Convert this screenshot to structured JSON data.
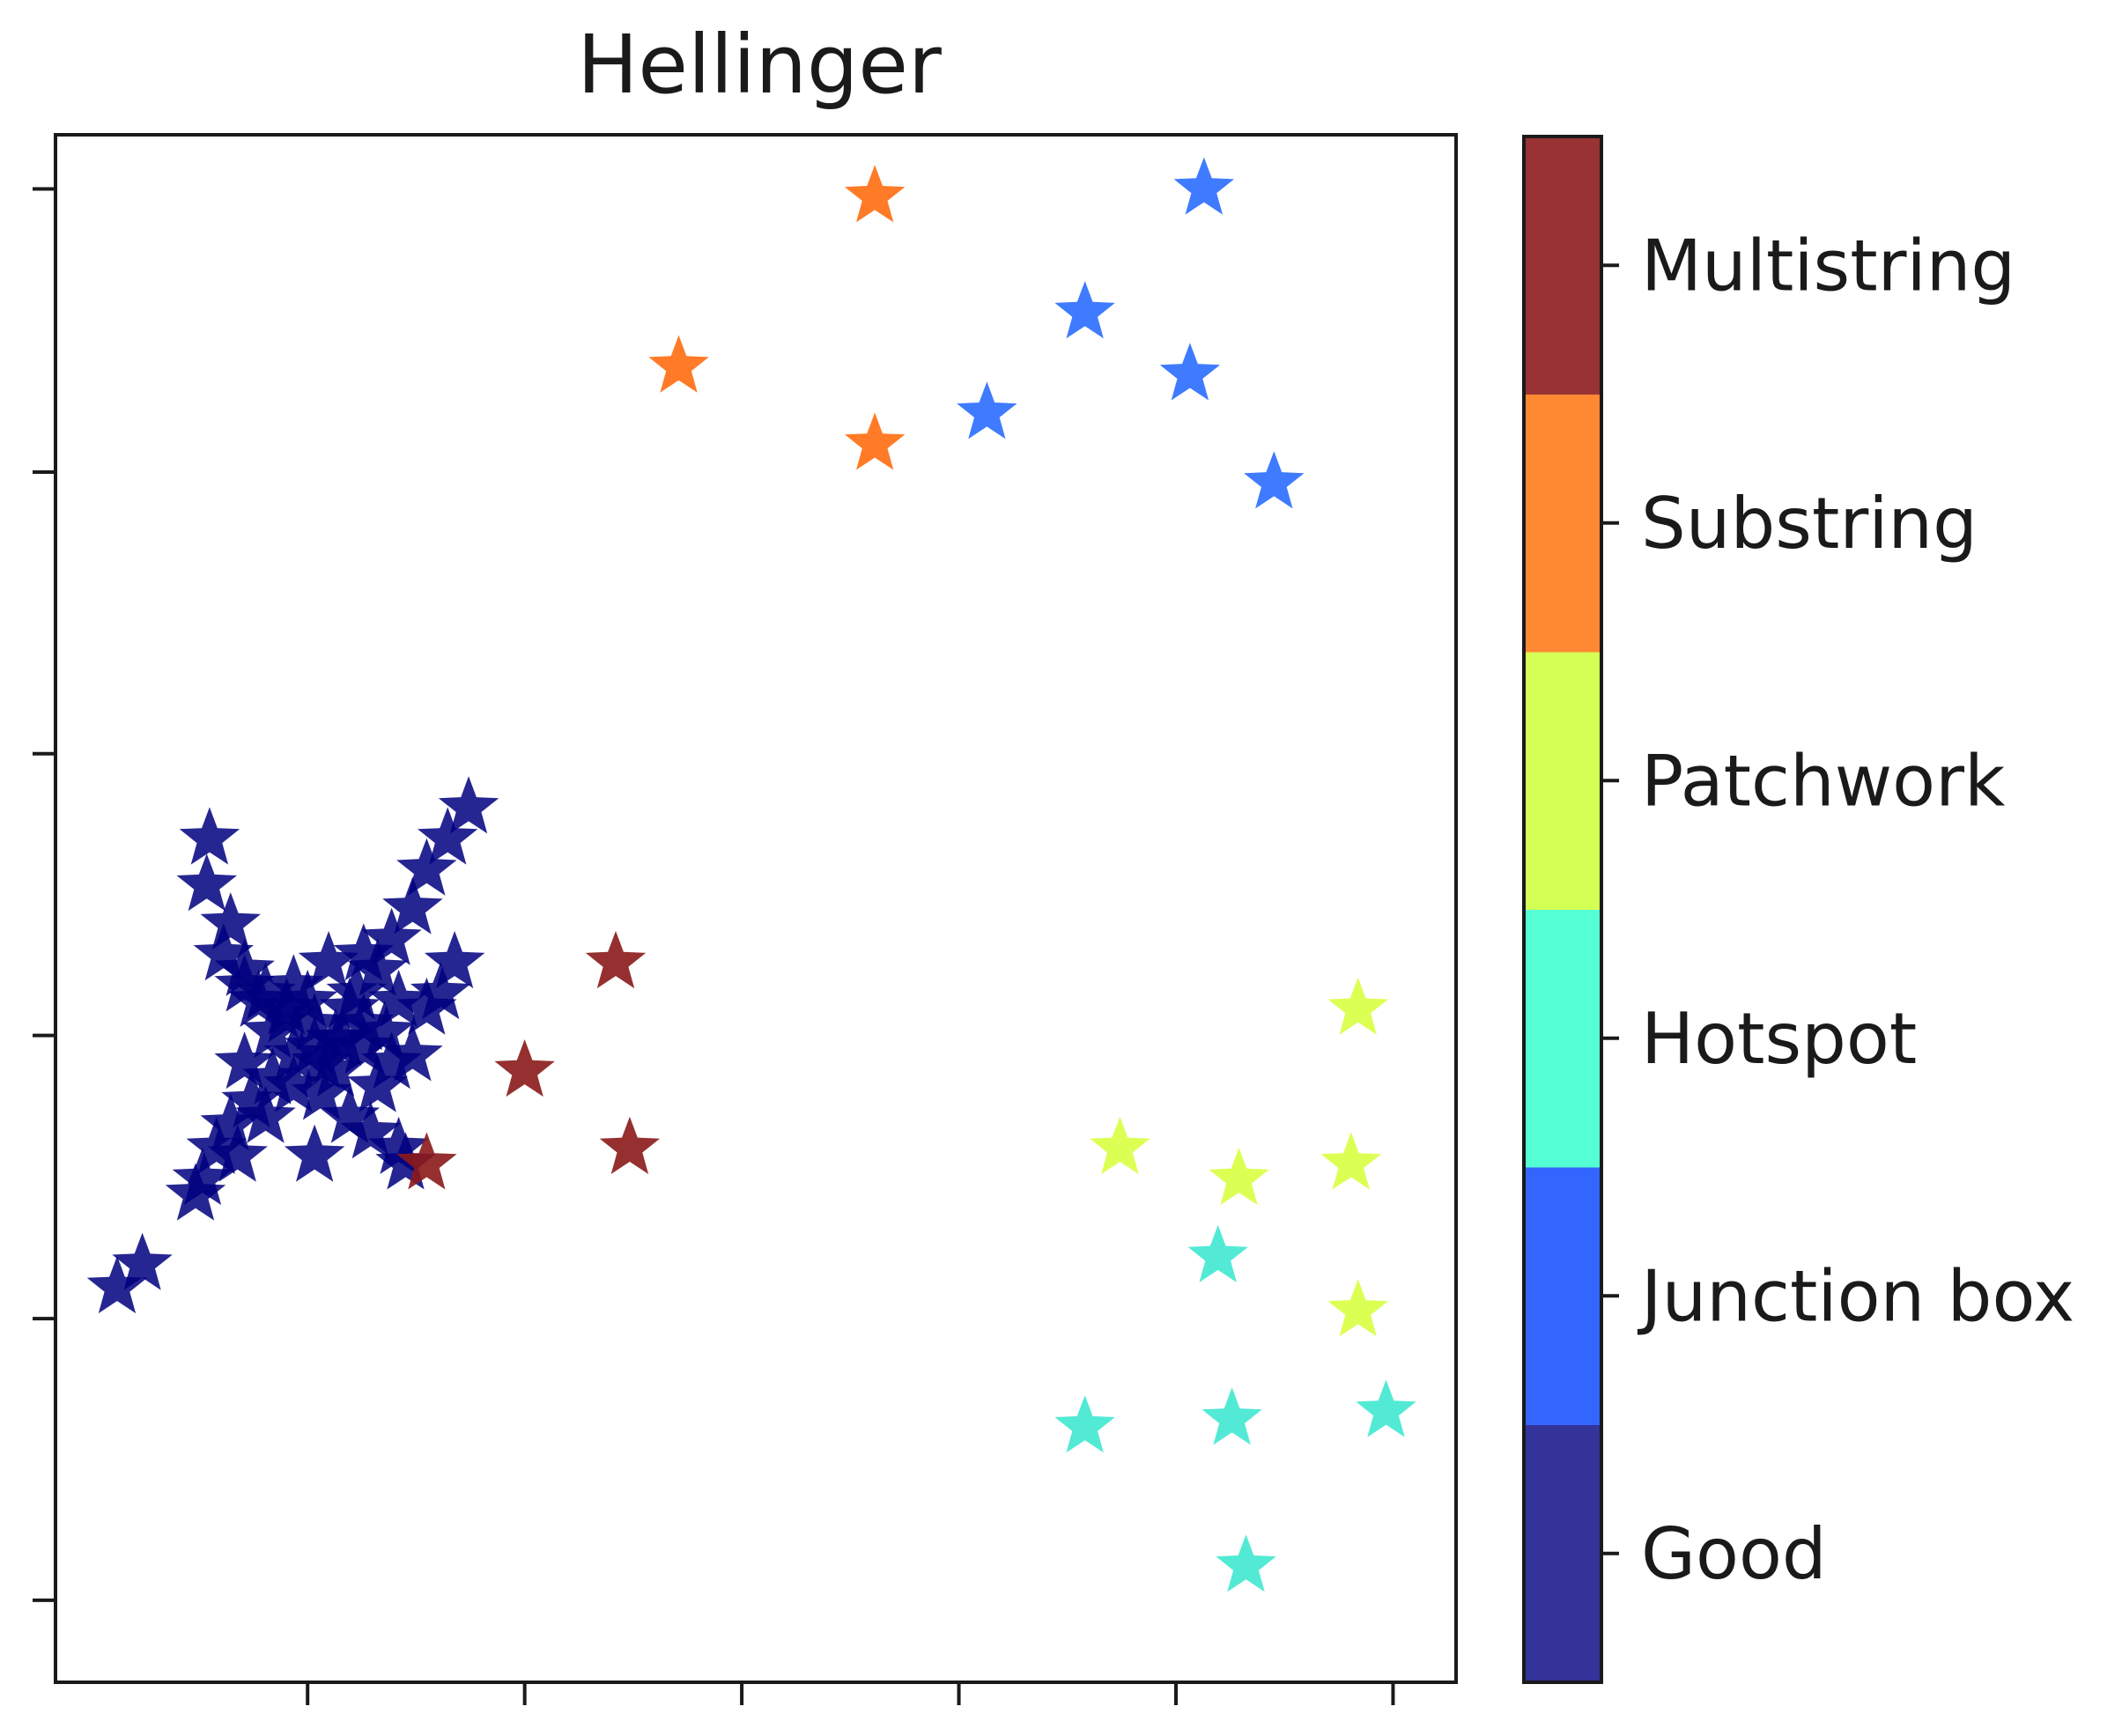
{
  "chart_data": {
    "type": "scatter",
    "title": "Hellinger",
    "xlabel": "",
    "ylabel": "",
    "xlim": [
      0,
      100
    ],
    "ylim": [
      0,
      100
    ],
    "x_ticks": [
      18,
      33.5,
      49,
      64.5,
      80,
      95.5
    ],
    "y_ticks": [
      5.3,
      23.5,
      41.8,
      60,
      78.2,
      96.5
    ],
    "tick_labels_shown": false,
    "grid": false,
    "marker": "star",
    "legend": "colorbar-right",
    "colorbar": {
      "labels": [
        "Good",
        "Junction box",
        "Hotspot",
        "Patchwork",
        "Substring",
        "Multistring"
      ],
      "colors": [
        "#333399",
        "#3366ff",
        "#55ffd4",
        "#d4ff55",
        "#ff8833",
        "#993333"
      ]
    },
    "series": [
      {
        "name": "Good",
        "color": "#00007f",
        "points": [
          [
            4.4,
            25.5
          ],
          [
            6.2,
            27.0
          ],
          [
            11,
            54.5
          ],
          [
            10.8,
            51.5
          ],
          [
            12.5,
            49
          ],
          [
            13.5,
            46
          ],
          [
            15,
            44.5
          ],
          [
            16.5,
            43.5
          ],
          [
            18.5,
            42.5
          ],
          [
            20,
            41.5
          ],
          [
            22,
            41
          ],
          [
            24,
            40
          ],
          [
            29.5,
            56.5
          ],
          [
            28,
            54.5
          ],
          [
            26.5,
            52.5
          ],
          [
            25.5,
            50
          ],
          [
            24,
            48
          ],
          [
            23,
            46
          ],
          [
            21.5,
            44.5
          ],
          [
            10.5,
            32.5
          ],
          [
            11.5,
            34.5
          ],
          [
            12.5,
            36
          ],
          [
            14,
            37.5
          ],
          [
            15.5,
            39
          ],
          [
            17,
            40.5
          ],
          [
            18.5,
            41
          ],
          [
            20.5,
            41.5
          ],
          [
            12,
            47
          ],
          [
            13.5,
            45
          ],
          [
            15.5,
            42
          ],
          [
            14.5,
            44
          ],
          [
            17,
            45
          ],
          [
            19.5,
            46.5
          ],
          [
            22,
            47
          ],
          [
            24.5,
            44
          ],
          [
            26.5,
            43.5
          ],
          [
            25.5,
            40.5
          ],
          [
            23,
            38.5
          ],
          [
            22.5,
            35.5
          ],
          [
            21,
            36.5
          ],
          [
            19,
            38
          ],
          [
            17,
            38.5
          ],
          [
            15,
            36.5
          ],
          [
            13,
            34
          ],
          [
            10,
            31.5
          ],
          [
            18.5,
            34
          ],
          [
            16.5,
            43
          ],
          [
            21,
            43.5
          ],
          [
            28.5,
            46.5
          ],
          [
            27.5,
            44.5
          ],
          [
            25,
            33.5
          ],
          [
            24.5,
            34.5
          ],
          [
            13.5,
            40
          ],
          [
            18,
            44
          ],
          [
            20,
            39.5
          ],
          [
            22,
            42.5
          ],
          [
            19,
            40
          ],
          [
            23.5,
            42
          ]
        ]
      },
      {
        "name": "Junction box",
        "color": "#2a6dff",
        "points": [
          [
            82,
            96.5
          ],
          [
            73.5,
            88.5
          ],
          [
            81,
            84.5
          ],
          [
            66.5,
            82
          ],
          [
            87,
            77.5
          ]
        ]
      },
      {
        "name": "Hotspot",
        "color": "#3fe8d0",
        "points": [
          [
            83,
            27.5
          ],
          [
            73.5,
            16.5
          ],
          [
            84,
            17
          ],
          [
            95,
            17.5
          ],
          [
            85,
            7.5
          ]
        ]
      },
      {
        "name": "Patchwork",
        "color": "#d8ff40",
        "points": [
          [
            93,
            43.5
          ],
          [
            76,
            34.5
          ],
          [
            84.5,
            32.5
          ],
          [
            92.5,
            33.5
          ],
          [
            93,
            24
          ]
        ]
      },
      {
        "name": "Substring",
        "color": "#ff6d10",
        "points": [
          [
            58.5,
            96
          ],
          [
            44.5,
            85
          ],
          [
            58.5,
            80
          ]
        ]
      },
      {
        "name": "Multistring",
        "color": "#8b1a1a",
        "points": [
          [
            40,
            46.5
          ],
          [
            33.5,
            39.5
          ],
          [
            26.5,
            33.5
          ],
          [
            41,
            34.5
          ]
        ]
      }
    ]
  }
}
